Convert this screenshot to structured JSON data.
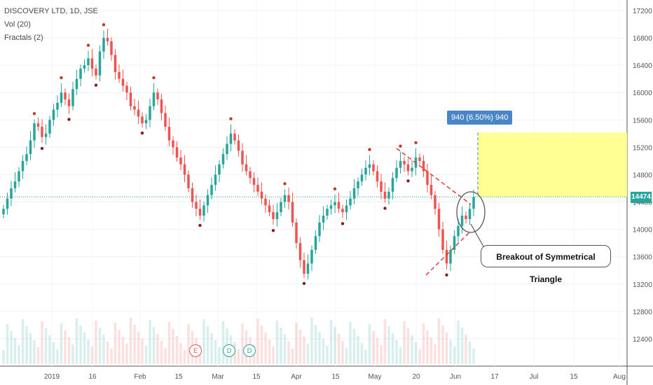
{
  "header": {
    "symbol_line": "DISCOVERY LTD, 1D, JSE",
    "volume_line": "Vol (20)",
    "fractals_line": "Fractals (2)"
  },
  "price_tag": "14474",
  "measure_label": "940 (6.50%) 940",
  "annotation": "Breakout of Symmetrical Triangle",
  "events": [
    {
      "label": "E",
      "color": "#e05a4f"
    },
    {
      "label": "D",
      "color": "#26a69a"
    },
    {
      "label": "D",
      "color": "#26a69a"
    }
  ],
  "colors": {
    "up": "#26a69a",
    "down": "#ef5350",
    "fractal_up": "#c0392b",
    "fractal_down": "#8b1a1a",
    "target_fill": "#ffff88",
    "accent": "#4a86c5"
  },
  "chart_data": {
    "type": "candlestick",
    "ylim": [
      12000,
      17200
    ],
    "y_ticks": [
      12400,
      12800,
      13200,
      13600,
      14000,
      14400,
      14800,
      15200,
      15600,
      16000,
      16400,
      16800,
      17200
    ],
    "x_tick_labels": [
      "2019",
      "16",
      "Feb",
      "15",
      "Mar",
      "15",
      "Apr",
      "15",
      "May",
      "20",
      "Jun",
      "17",
      "Jul",
      "15",
      "Aug"
    ],
    "last_close": 14474,
    "target": {
      "from": 14474,
      "to": 15414,
      "change": 940,
      "change_pct": 6.5
    },
    "series": [
      {
        "name": "Price",
        "close": [
          14300,
          14450,
          14600,
          14700,
          14850,
          15000,
          15100,
          15300,
          15550,
          15500,
          15350,
          15400,
          15600,
          15750,
          15850,
          16000,
          15900,
          15800,
          16050,
          16200,
          16350,
          16400,
          16500,
          16350,
          16250,
          16600,
          16800,
          16750,
          16550,
          16300,
          16200,
          16100,
          16000,
          15800,
          15750,
          15650,
          15550,
          15600,
          15800,
          16000,
          15900,
          15700,
          15500,
          15300,
          15200,
          15050,
          14950,
          14800,
          14600,
          14400,
          14300,
          14200,
          14350,
          14500,
          14650,
          14800,
          14950,
          15100,
          15250,
          15400,
          15300,
          15150,
          14950,
          14850,
          14750,
          14650,
          14550,
          14450,
          14350,
          14250,
          14150,
          14250,
          14400,
          14500,
          14400,
          14100,
          13800,
          13550,
          13350,
          13500,
          13700,
          13900,
          14100,
          14200,
          14300,
          14350,
          14400,
          14300,
          14250,
          14350,
          14450,
          14600,
          14700,
          14800,
          14900,
          14950,
          14850,
          14700,
          14550,
          14450,
          14550,
          14750,
          14900,
          15000,
          14950,
          14850,
          14900,
          15050,
          15000,
          14850,
          14650,
          14500,
          14300,
          14000,
          13700,
          13500,
          13700,
          13900,
          14050,
          14200,
          14150,
          14300,
          14474
        ]
      }
    ]
  }
}
